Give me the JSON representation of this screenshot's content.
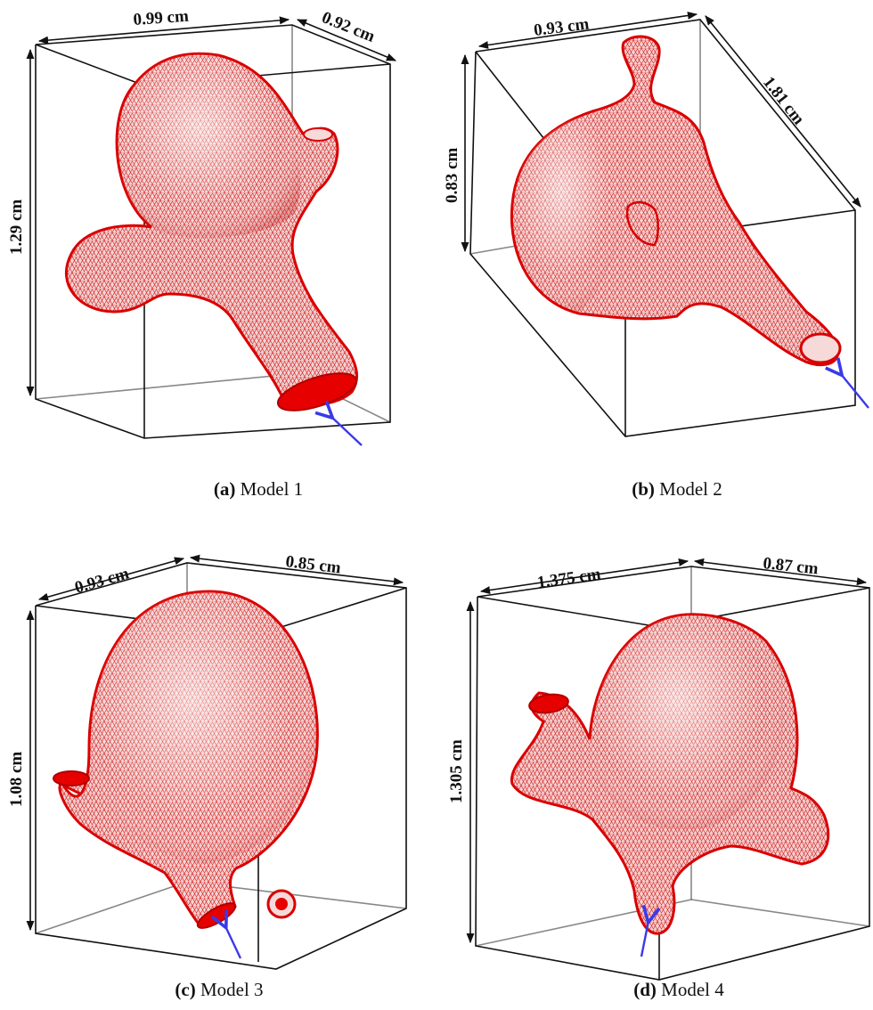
{
  "panels": [
    {
      "id": "a",
      "caption_label": "(a)",
      "caption_text": "Model 1",
      "dims": {
        "width": "0.99 cm",
        "depth": "0.92 cm",
        "height": "1.29 cm"
      }
    },
    {
      "id": "b",
      "caption_label": "(b)",
      "caption_text": "Model 2",
      "dims": {
        "width": "0.93 cm",
        "depth": "1.81 cm",
        "height": "0.83 cm"
      }
    },
    {
      "id": "c",
      "caption_label": "(c)",
      "caption_text": "Model 3",
      "dims": {
        "width": "0.93 cm",
        "depth": "0.85 cm",
        "height": "1.08 cm"
      }
    },
    {
      "id": "d",
      "caption_label": "(d)",
      "caption_text": "Model 4",
      "dims": {
        "width": "1.375 cm",
        "depth": "0.87 cm",
        "height": "1.305 cm"
      }
    }
  ],
  "colors": {
    "mesh": "#d90000",
    "mesh_fill": "#f2c2c2",
    "inlet_arrow": "#3a3ae8",
    "box": "#111111"
  },
  "icons": {
    "inlet": "inlet-arrow-icon"
  }
}
